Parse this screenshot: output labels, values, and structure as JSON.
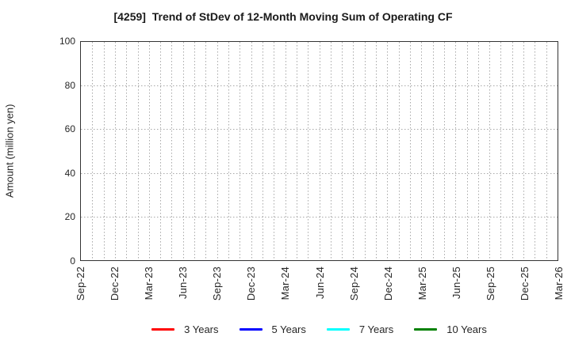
{
  "figure": {
    "background": "#ffffff",
    "frame_color": "#333333",
    "text_color": "#262626"
  },
  "chart_data": {
    "type": "line",
    "title": "[4259]  Trend of StDev of 12-Month Moving Sum of Operating CF",
    "ylabel": "Amount (million yen)",
    "xlabel": "",
    "ylim": [
      0,
      100
    ],
    "yticks": [
      0,
      20,
      40,
      60,
      80,
      100
    ],
    "x_start": "Sep-22",
    "x_end": "Mar-26",
    "x_unit": "month",
    "months_total": 42,
    "x_tick_label_every_months": 3,
    "x_tick_labels": [
      "Sep-22",
      "Dec-22",
      "Mar-23",
      "Jun-23",
      "Sep-23",
      "Dec-23",
      "Mar-24",
      "Jun-24",
      "Sep-24",
      "Dec-24",
      "Mar-25",
      "Jun-25",
      "Sep-25",
      "Dec-25",
      "Mar-26"
    ],
    "x_tick_label_rotation_deg": 90,
    "grid": {
      "visible": true,
      "style": "dotted",
      "color": "#a8a8a8",
      "vertical_lines": "every month",
      "horizontal_lines_at": [
        20,
        40,
        60,
        80
      ]
    },
    "legend_position": "bottom-center",
    "series": [
      {
        "name": "3 Years",
        "color": "#ff0000",
        "values": []
      },
      {
        "name": "5 Years",
        "color": "#0000ff",
        "values": []
      },
      {
        "name": "7 Years",
        "color": "#00ffff",
        "values": []
      },
      {
        "name": "10 Years",
        "color": "#008000",
        "values": []
      }
    ],
    "note": "plot area is empty - no data lines drawn, only dotted grid, axes frame and legend"
  }
}
